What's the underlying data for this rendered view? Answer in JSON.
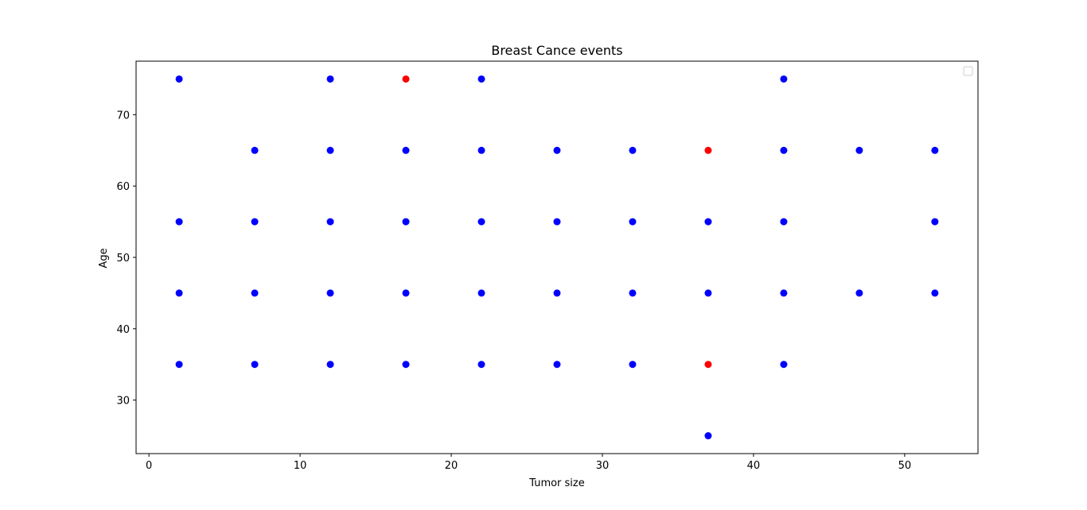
{
  "chart_data": {
    "type": "scatter",
    "title": "Breast Cance events",
    "xlabel": "Tumor size",
    "ylabel": "Age",
    "xlim": [
      -0.85,
      54.85
    ],
    "ylim": [
      22.5,
      77.5
    ],
    "xticks": [
      0,
      10,
      20,
      30,
      40,
      50
    ],
    "yticks": [
      30,
      40,
      50,
      60,
      70
    ],
    "grid": false,
    "legend": {
      "placement": "top-right",
      "entries": []
    },
    "colors": {
      "event": "#ff0000",
      "no_event": "#0000ff"
    },
    "series": [
      {
        "color": "#0000ff",
        "points": [
          {
            "x": 2,
            "y": 75
          },
          {
            "x": 2,
            "y": 55
          },
          {
            "x": 2,
            "y": 45
          },
          {
            "x": 2,
            "y": 35
          },
          {
            "x": 7,
            "y": 65
          },
          {
            "x": 7,
            "y": 55
          },
          {
            "x": 7,
            "y": 45
          },
          {
            "x": 7,
            "y": 35
          },
          {
            "x": 12,
            "y": 75
          },
          {
            "x": 12,
            "y": 65
          },
          {
            "x": 12,
            "y": 55
          },
          {
            "x": 12,
            "y": 45
          },
          {
            "x": 12,
            "y": 35
          },
          {
            "x": 17,
            "y": 65
          },
          {
            "x": 17,
            "y": 55
          },
          {
            "x": 17,
            "y": 45
          },
          {
            "x": 17,
            "y": 35
          },
          {
            "x": 22,
            "y": 75
          },
          {
            "x": 22,
            "y": 65
          },
          {
            "x": 22,
            "y": 55
          },
          {
            "x": 22,
            "y": 45
          },
          {
            "x": 22,
            "y": 35
          },
          {
            "x": 27,
            "y": 65
          },
          {
            "x": 27,
            "y": 55
          },
          {
            "x": 27,
            "y": 45
          },
          {
            "x": 27,
            "y": 35
          },
          {
            "x": 32,
            "y": 65
          },
          {
            "x": 32,
            "y": 55
          },
          {
            "x": 32,
            "y": 45
          },
          {
            "x": 32,
            "y": 35
          },
          {
            "x": 37,
            "y": 55
          },
          {
            "x": 37,
            "y": 45
          },
          {
            "x": 37,
            "y": 25
          },
          {
            "x": 42,
            "y": 75
          },
          {
            "x": 42,
            "y": 65
          },
          {
            "x": 42,
            "y": 55
          },
          {
            "x": 42,
            "y": 45
          },
          {
            "x": 42,
            "y": 35
          },
          {
            "x": 47,
            "y": 65
          },
          {
            "x": 47,
            "y": 45
          },
          {
            "x": 52,
            "y": 65
          },
          {
            "x": 52,
            "y": 55
          },
          {
            "x": 52,
            "y": 45
          }
        ]
      },
      {
        "color": "#ff0000",
        "points": [
          {
            "x": 17,
            "y": 75
          },
          {
            "x": 37,
            "y": 65
          },
          {
            "x": 37,
            "y": 35
          }
        ]
      }
    ]
  }
}
